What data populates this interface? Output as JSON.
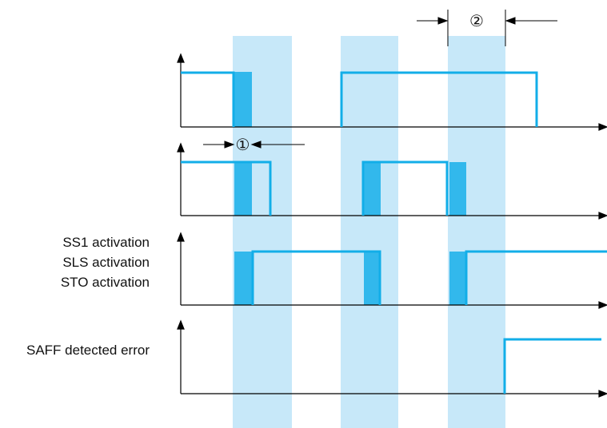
{
  "labels": {
    "ss1": "SS1 activation",
    "sls": "SLS activation",
    "sto": "STO activation",
    "saff": "SAFF detected error"
  },
  "markers": {
    "one": "①",
    "two": "②"
  },
  "colors": {
    "signal": "#12aee8",
    "band": "#c7e8f9",
    "pulse": "#32b8ec",
    "axis": "#000000"
  }
}
